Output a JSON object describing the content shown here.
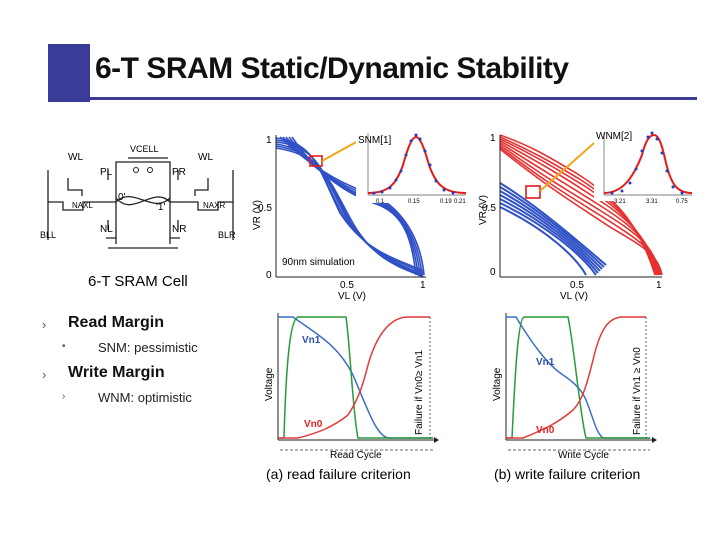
{
  "slide": {
    "title": "6-T SRAM Static/Dynamic Stability",
    "accent_color": "#3b3b9a"
  },
  "cell": {
    "caption": "6-T SRAM Cell",
    "labels": {
      "wl_left": "WL",
      "wl_right": "WL",
      "vcell": "VCELL",
      "pl": "PL",
      "pr": "PR",
      "nl": "NL",
      "nr": "NR",
      "naxl": "NAXL",
      "naxr": "NAXR",
      "bl_left": "BLL",
      "bl_right": "BLR",
      "node_left": "0'",
      "node_right": "'1'"
    }
  },
  "bullets": [
    {
      "text": "Read Margin",
      "sub": "SNM: pessimistic",
      "sub_marker": "•"
    },
    {
      "text": "Write Margin",
      "sub": "WNM: optimistic",
      "sub_marker": "›"
    }
  ],
  "butterfly_left": {
    "ylabel": "VR (V)",
    "xlabel": "VL (V)",
    "ticks": {
      "x0": "0",
      "x05": "0.5",
      "x1": "1",
      "y0": "0",
      "y05": "0.5",
      "y1": "1"
    },
    "note": "90nm simulation",
    "inset_title": "SNM[1]",
    "inset_xticks": [
      "0.1",
      "0.15",
      "0.19",
      "0.21"
    ],
    "color": "#1a3fbf"
  },
  "butterfly_right": {
    "ylabel": "VR (V)",
    "xlabel": "VL (V)",
    "ticks": {
      "x0": "0",
      "x05": "0.5",
      "x1": "1",
      "y0": "0",
      "y05": "0.5",
      "y1": "1"
    },
    "inset_title": "WNM[2]",
    "inset_xticks": [
      "3.21",
      "3.31",
      "0.75"
    ],
    "color_red": "#e51b1b",
    "color_blue": "#1a3fbf"
  },
  "waveform_left": {
    "ylabel": "Voltage",
    "right_label": "Failure if Vn0≥ Vn1",
    "xlabel": "Read Cycle",
    "vn1": "Vn1",
    "vn0": "Vn0",
    "caption": "(a) read failure criterion"
  },
  "waveform_right": {
    "ylabel": "Voltage",
    "right_label": "Failure if Vn1 ≥ Vn0",
    "xlabel": "Write Cycle",
    "vn1": "Vn1",
    "vn0": "Vn0",
    "caption": "(b) write failure criterion"
  }
}
